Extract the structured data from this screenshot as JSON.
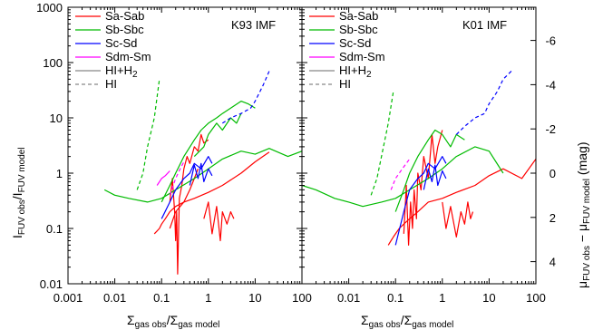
{
  "chart_data": {
    "type": "line",
    "xlabel": {
      "main": "Σ",
      "sub1": "gas obs",
      "mid": "/Σ",
      "sub2": "gas model"
    },
    "ylabel_left": {
      "main": "I",
      "sub1": "FUV obs",
      "mid": "/I",
      "sub2": "FUV model"
    },
    "ylabel_right": {
      "main": "μ",
      "sub1": "FUV obs",
      "mid": " − μ",
      "sub2": "FUV model",
      "unit": " (mag)"
    },
    "xscale": "log",
    "yscale": "log",
    "panels": [
      {
        "label": "K93 IMF",
        "xlim": [
          0.001,
          100
        ],
        "ylim": [
          0.01,
          1000
        ],
        "xticks": [
          0.001,
          0.01,
          0.1,
          1,
          10,
          100
        ],
        "xtick_labels": [
          "0.001",
          "0.01",
          "0.1",
          "1",
          "10",
          "100"
        ],
        "yticks": [
          0.01,
          0.1,
          1,
          10,
          100,
          1000
        ],
        "ytick_labels": [
          "0.01",
          "0.1",
          "1",
          "10",
          "100",
          "1000"
        ]
      },
      {
        "label": "K01 IMF",
        "xlim": [
          0.001,
          100
        ],
        "ylim": [
          0.01,
          1000
        ],
        "xticks": [
          0.01,
          0.1,
          1,
          10,
          100
        ],
        "xtick_labels": [
          "0.01",
          "0.1",
          "1",
          "10",
          "100"
        ],
        "mag_ticks": [
          -6,
          -4,
          -2,
          0,
          2,
          4
        ],
        "mag_tick_labels": [
          "-6",
          "-4",
          "-2",
          "0",
          "2",
          "4"
        ]
      }
    ],
    "legend": [
      {
        "label": "Sa-Sab",
        "color": "#ff0000",
        "dash": "solid"
      },
      {
        "label": "Sb-Sbc",
        "color": "#00bb00",
        "dash": "solid"
      },
      {
        "label": "Sc-Sd",
        "color": "#0000ff",
        "dash": "solid"
      },
      {
        "label": "Sdm-Sm",
        "color": "#ff00ff",
        "dash": "solid"
      },
      {
        "label": "HI+H",
        "label_sub": "2",
        "color": "#888888",
        "dash": "solid"
      },
      {
        "label": "HI",
        "color": "#888888",
        "dash": "dashed"
      }
    ],
    "legend_position": "top-left",
    "series": [
      {
        "name": "Sa-Sab",
        "color": "#ff0000",
        "panel": 0,
        "dash": "solid",
        "x": [
          0.07,
          0.08,
          0.09,
          0.1,
          0.12,
          0.15,
          0.2,
          0.3,
          0.5,
          1,
          2,
          5,
          10,
          20
        ],
        "y": [
          0.08,
          0.09,
          0.1,
          0.12,
          0.15,
          0.2,
          0.25,
          0.3,
          0.35,
          0.45,
          0.6,
          1,
          1.6,
          2.4
        ]
      },
      {
        "name": "Sa-Sab",
        "color": "#ff0000",
        "panel": 0,
        "dash": "solid",
        "x": [
          0.15,
          0.17,
          0.19,
          0.2,
          0.21,
          0.22,
          0.24,
          0.27,
          0.3,
          0.35,
          0.4,
          0.5,
          0.6,
          0.7,
          0.8,
          1
        ],
        "y": [
          0.3,
          0.8,
          0.2,
          0.06,
          0.2,
          0.015,
          0.35,
          0.6,
          1.2,
          2,
          1.5,
          3,
          2.5,
          5,
          3.5,
          4
        ]
      },
      {
        "name": "Sa-Sab",
        "color": "#ff0000",
        "panel": 0,
        "dash": "solid",
        "x": [
          0.8,
          1,
          1.2,
          1.5,
          1.8,
          2,
          2.5,
          3,
          3.5
        ],
        "y": [
          0.15,
          0.3,
          0.08,
          0.25,
          0.06,
          0.2,
          0.12,
          0.2,
          0.15
        ]
      },
      {
        "name": "Sa-Sab",
        "color": "#ff0000",
        "panel": 0,
        "dash": "solid",
        "x": [
          0.15,
          0.2,
          0.3,
          0.4,
          0.5,
          0.6
        ],
        "y": [
          0.1,
          0.2,
          0.3,
          0.5,
          0.8,
          1.2
        ]
      },
      {
        "name": "Sb-Sbc",
        "color": "#00bb00",
        "panel": 0,
        "dash": "solid",
        "x": [
          0.006,
          0.01,
          0.02,
          0.05,
          0.1,
          0.2,
          0.5,
          1,
          2,
          5,
          10,
          20,
          50,
          100
        ],
        "y": [
          0.5,
          0.4,
          0.35,
          0.3,
          0.35,
          0.5,
          0.8,
          1.2,
          1.8,
          2.5,
          2.2,
          2.8,
          2,
          2.5
        ]
      },
      {
        "name": "Sb-Sbc",
        "color": "#00bb00",
        "panel": 0,
        "dash": "solid",
        "x": [
          0.1,
          0.15,
          0.2,
          0.3,
          0.5,
          0.7,
          1,
          1.5,
          2,
          3,
          5,
          7,
          10
        ],
        "y": [
          0.3,
          0.6,
          1,
          2,
          4,
          6,
          8,
          10,
          12,
          15,
          20,
          18,
          15
        ]
      },
      {
        "name": "Sb-Sbc",
        "color": "#00bb00",
        "panel": 0,
        "dash": "solid",
        "x": [
          0.5,
          0.8,
          1,
          1.5,
          2,
          3,
          4,
          5
        ],
        "y": [
          2,
          3,
          5,
          8,
          6,
          10,
          8,
          12
        ]
      },
      {
        "name": "Sc-Sd",
        "color": "#0000ff",
        "panel": 0,
        "dash": "solid",
        "x": [
          0.1,
          0.15,
          0.2,
          0.3,
          0.4,
          0.5,
          0.7,
          1,
          1.2
        ],
        "y": [
          0.15,
          0.3,
          0.5,
          0.8,
          1,
          1.5,
          1.2,
          2,
          1.5
        ]
      },
      {
        "name": "Sc-Sd",
        "color": "#0000ff",
        "panel": 0,
        "dash": "solid",
        "x": [
          0.4,
          0.5,
          0.6,
          0.7,
          0.8,
          1,
          1.2
        ],
        "y": [
          0.6,
          1.4,
          0.8,
          1.5,
          0.7,
          1.2,
          0.9
        ]
      },
      {
        "name": "Sc-Sd",
        "color": "#0000ff",
        "panel": 0,
        "dash": "dashed",
        "x": [
          2,
          3,
          5,
          8,
          10,
          15,
          20
        ],
        "y": [
          8,
          10,
          12,
          15,
          20,
          40,
          70
        ]
      },
      {
        "name": "Sdm-Sm",
        "color": "#ff00ff",
        "panel": 0,
        "dash": "solid",
        "x": [
          0.08,
          0.1,
          0.12,
          0.15
        ],
        "y": [
          0.6,
          0.8,
          0.9,
          1.1
        ]
      },
      {
        "name": "Sdm-Sm",
        "color": "#ff00ff",
        "panel": 0,
        "dash": "dashed",
        "x": [
          0.15,
          0.2,
          0.25,
          0.3
        ],
        "y": [
          0.4,
          0.8,
          1.2,
          1.6
        ]
      },
      {
        "name": "HI",
        "color": "#00bb00",
        "panel": 0,
        "dash": "dashed",
        "x": [
          0.03,
          0.04,
          0.05,
          0.07,
          0.09
        ],
        "y": [
          0.5,
          1,
          3,
          10,
          50
        ]
      },
      {
        "name": "Sa-Sab",
        "color": "#ff0000",
        "panel": 1,
        "dash": "solid",
        "x": [
          0.07,
          0.08,
          0.09,
          0.1,
          0.12,
          0.15,
          0.2,
          0.3,
          0.5,
          1,
          2,
          5,
          10,
          20,
          50,
          100
        ],
        "y": [
          0.05,
          0.06,
          0.07,
          0.08,
          0.1,
          0.12,
          0.15,
          0.2,
          0.3,
          0.35,
          0.45,
          0.6,
          0.9,
          1.2,
          0.8,
          1.8
        ]
      },
      {
        "name": "Sa-Sab",
        "color": "#ff0000",
        "panel": 1,
        "dash": "solid",
        "x": [
          0.15,
          0.17,
          0.19,
          0.21,
          0.23,
          0.25,
          0.28,
          0.3,
          0.35,
          0.4,
          0.5,
          0.6,
          0.7,
          0.8,
          1
        ],
        "y": [
          0.08,
          0.6,
          0.05,
          0.3,
          0.1,
          0.5,
          0.15,
          1,
          0.5,
          2,
          0.8,
          5,
          1.5,
          3,
          6
        ]
      },
      {
        "name": "Sa-Sab",
        "color": "#ff0000",
        "panel": 1,
        "dash": "solid",
        "x": [
          1,
          1.2,
          1.5,
          2,
          2.5,
          3,
          3.5,
          4,
          4.5
        ],
        "y": [
          0.3,
          0.1,
          0.25,
          0.07,
          0.2,
          0.12,
          0.3,
          0.15,
          0.2
        ]
      },
      {
        "name": "Sb-Sbc",
        "color": "#00bb00",
        "panel": 1,
        "dash": "solid",
        "x": [
          0.001,
          0.002,
          0.005,
          0.01,
          0.02,
          0.05,
          0.1,
          0.2,
          0.5,
          1,
          2,
          5,
          10,
          20
        ],
        "y": [
          0.6,
          0.5,
          0.35,
          0.3,
          0.25,
          0.3,
          0.35,
          0.5,
          0.8,
          1.2,
          2,
          3,
          2.5,
          1
        ]
      },
      {
        "name": "Sb-Sbc",
        "color": "#00bb00",
        "panel": 1,
        "dash": "solid",
        "x": [
          0.1,
          0.15,
          0.2,
          0.3,
          0.5,
          0.7,
          1,
          1.5,
          2,
          3
        ],
        "y": [
          0.2,
          0.5,
          1,
          2,
          4,
          6,
          5,
          3,
          5,
          4
        ]
      },
      {
        "name": "Sc-Sd",
        "color": "#0000ff",
        "panel": 1,
        "dash": "solid",
        "x": [
          0.1,
          0.15,
          0.2,
          0.3,
          0.4,
          0.5,
          0.7,
          1,
          1.2
        ],
        "y": [
          0.05,
          0.2,
          0.5,
          0.8,
          1,
          1.5,
          1.2,
          2,
          1.5
        ]
      },
      {
        "name": "Sc-Sd",
        "color": "#0000ff",
        "panel": 1,
        "dash": "solid",
        "x": [
          0.4,
          0.5,
          0.6,
          0.7,
          0.8,
          1,
          1.2
        ],
        "y": [
          0.5,
          1.2,
          0.7,
          1.4,
          0.6,
          1.1,
          0.8
        ]
      },
      {
        "name": "Sc-Sd",
        "color": "#0000ff",
        "panel": 1,
        "dash": "dashed",
        "x": [
          2,
          3,
          5,
          8,
          10,
          15,
          20,
          30
        ],
        "y": [
          5,
          7,
          10,
          12,
          18,
          30,
          50,
          70
        ]
      },
      {
        "name": "Sdm-Sm",
        "color": "#ff00ff",
        "panel": 1,
        "dash": "dashed",
        "x": [
          0.08,
          0.1,
          0.12,
          0.15,
          0.2
        ],
        "y": [
          0.5,
          0.8,
          1,
          1.3,
          1.8
        ]
      },
      {
        "name": "HI",
        "color": "#00bb00",
        "panel": 1,
        "dash": "dashed",
        "x": [
          0.03,
          0.04,
          0.05,
          0.07,
          0.09
        ],
        "y": [
          0.4,
          0.8,
          2,
          8,
          30
        ]
      }
    ]
  }
}
